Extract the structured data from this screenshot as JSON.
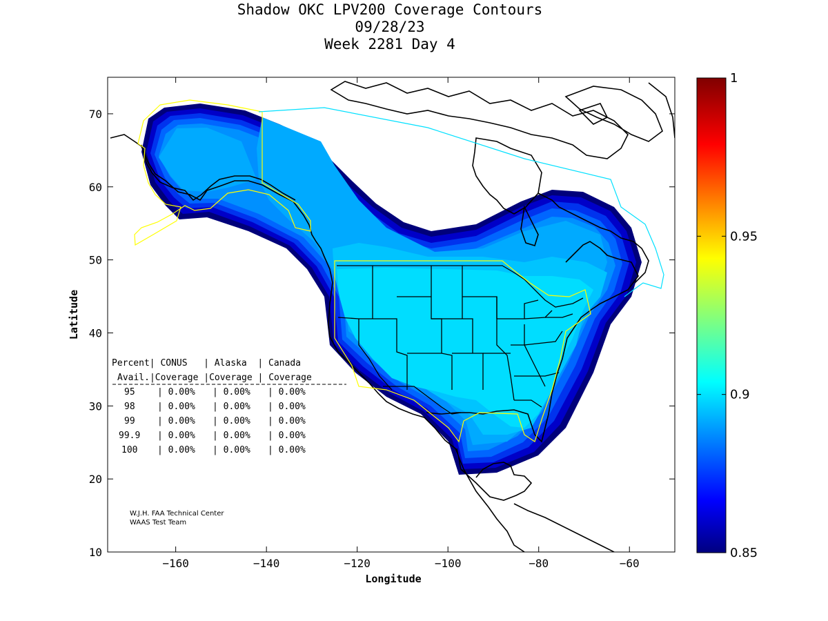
{
  "title": {
    "line1": "Shadow OKC LPV200 Coverage Contours",
    "line2": "09/28/23",
    "line3": "Week 2281 Day 4"
  },
  "axes": {
    "xlabel": "Longitude",
    "ylabel": "Latitude",
    "xlim": [
      -175,
      -50
    ],
    "ylim": [
      10,
      75
    ],
    "xticks": [
      -160,
      -140,
      -120,
      -100,
      -80,
      -60
    ],
    "yticks": [
      10,
      20,
      30,
      40,
      50,
      60,
      70
    ]
  },
  "colorbar": {
    "min": 0.85,
    "max": 1,
    "ticks": [
      "0.85",
      "0.9",
      "0.95",
      "1"
    ],
    "colors": [
      "#000080",
      "#0000ff",
      "#0080ff",
      "#00ffff",
      "#80ff80",
      "#ffff00",
      "#ff8000",
      "#ff0000",
      "#800000"
    ]
  },
  "table": {
    "header1": [
      "Percent",
      "CONUS",
      "Alaska",
      "Canada"
    ],
    "header2": [
      "Avail.",
      "Coverage",
      "Coverage",
      "Coverage"
    ],
    "rows": [
      [
        "95",
        "0.00%",
        "0.00%",
        "0.00%"
      ],
      [
        "98",
        "0.00%",
        "0.00%",
        "0.00%"
      ],
      [
        "99",
        "0.00%",
        "0.00%",
        "0.00%"
      ],
      [
        "99.9",
        "0.00%",
        "0.00%",
        "0.00%"
      ],
      [
        "100",
        "0.00%",
        "0.00%",
        "0.00%"
      ]
    ]
  },
  "credits": {
    "line1": "W.J.H. FAA Technical Center",
    "line2": "WAAS Test Team"
  },
  "colors": {
    "band1": "#00007a",
    "band2": "#0000c8",
    "band3": "#0033ee",
    "band4": "#0066ff",
    "band5": "#0090ff",
    "band6": "#00aaff",
    "band7": "#00c4ff",
    "band8": "#00ddff",
    "service_alaska_conus": "#ffff00",
    "service_canada": "#00e0ff"
  }
}
